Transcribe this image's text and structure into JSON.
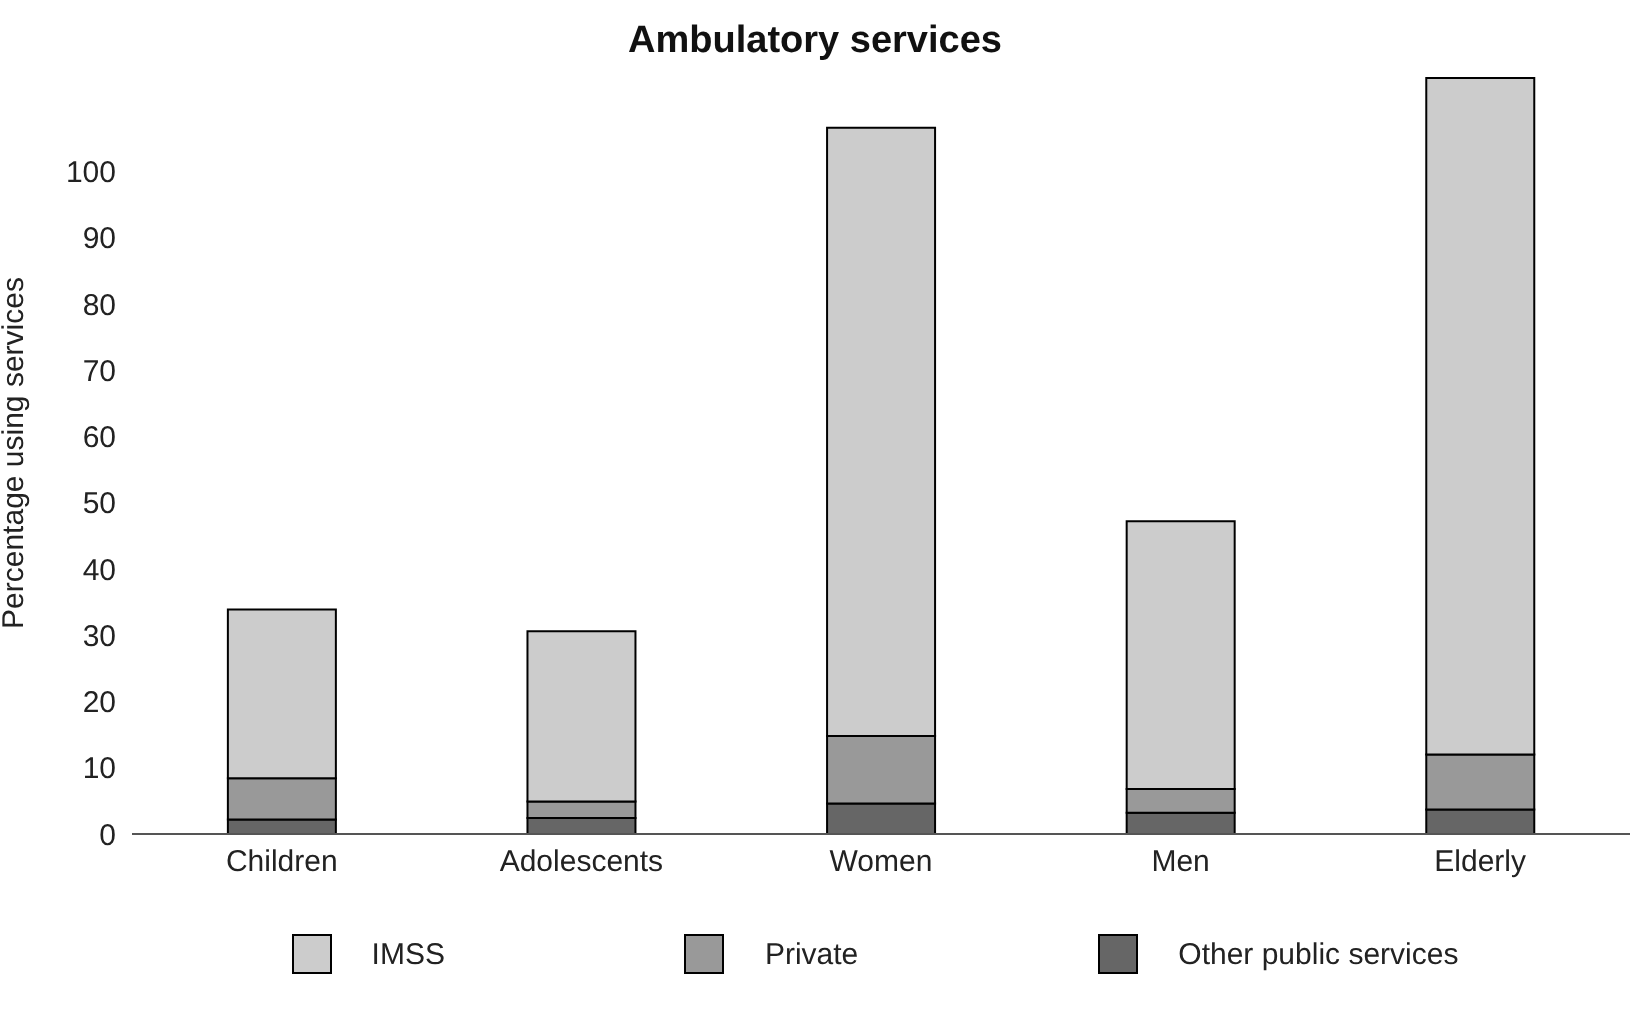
{
  "chart_data": {
    "type": "bar",
    "title": "Ambulatory services",
    "ylabel": "Percentage using services",
    "categories": [
      "Children",
      "Adolescents",
      "Women",
      "Men",
      "Elderly"
    ],
    "stacked": true,
    "series": [
      {
        "name": "Other public services",
        "color": "#666666",
        "values": [
          2.2,
          2.4,
          4.6,
          3.2,
          3.7
        ]
      },
      {
        "name": "Private",
        "color": "#999999",
        "values": [
          6.2,
          2.5,
          10.2,
          3.6,
          8.3
        ]
      },
      {
        "name": "IMSS",
        "color": "#cccccc",
        "values": [
          25.5,
          25.7,
          91.8,
          40.4,
          102.1
        ]
      }
    ],
    "ylim": [
      0,
      115
    ],
    "yticks": [
      0,
      10,
      20,
      30,
      40,
      50,
      60,
      70,
      80,
      90,
      100
    ],
    "grid": false,
    "legend": "bottom"
  }
}
